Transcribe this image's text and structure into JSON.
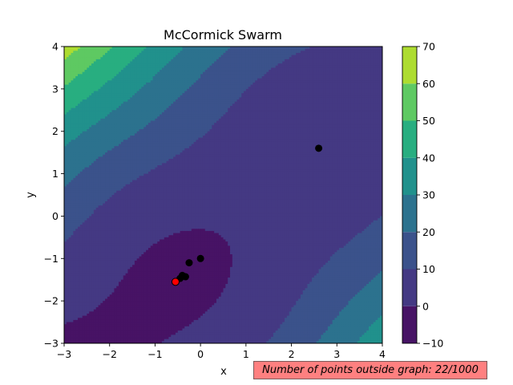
{
  "chart_data": {
    "type": "contour",
    "title": "McCormick Swarm",
    "xlabel": "x",
    "ylabel": "y",
    "xlim": [
      -3,
      4
    ],
    "ylim": [
      -3,
      4
    ],
    "xticks": [
      -3,
      -2,
      -1,
      0,
      1,
      2,
      3,
      4
    ],
    "yticks": [
      -3,
      -2,
      -1,
      0,
      1,
      2,
      3,
      4
    ],
    "function": "McCormick",
    "colorbar": {
      "levels": [
        -10,
        0,
        10,
        20,
        30,
        40,
        50,
        60,
        70
      ],
      "colors": [
        "#471365",
        "#443983",
        "#3b528b",
        "#2c728e",
        "#21918c",
        "#28ae80",
        "#5ec962",
        "#addc30"
      ]
    },
    "particles": [
      {
        "x": 2.6,
        "y": 1.6
      },
      {
        "x": 0.0,
        "y": -1.0
      },
      {
        "x": -0.25,
        "y": -1.1
      },
      {
        "x": -0.4,
        "y": -1.4
      },
      {
        "x": -0.33,
        "y": -1.43
      },
      {
        "x": -0.45,
        "y": -1.47
      }
    ],
    "best": {
      "x": -0.55,
      "y": -1.55
    },
    "particle_color": "#000000",
    "best_color": "#ff0000"
  },
  "status": {
    "text": "Number of points outside graph: 22/1000",
    "background": "#ff8080"
  }
}
